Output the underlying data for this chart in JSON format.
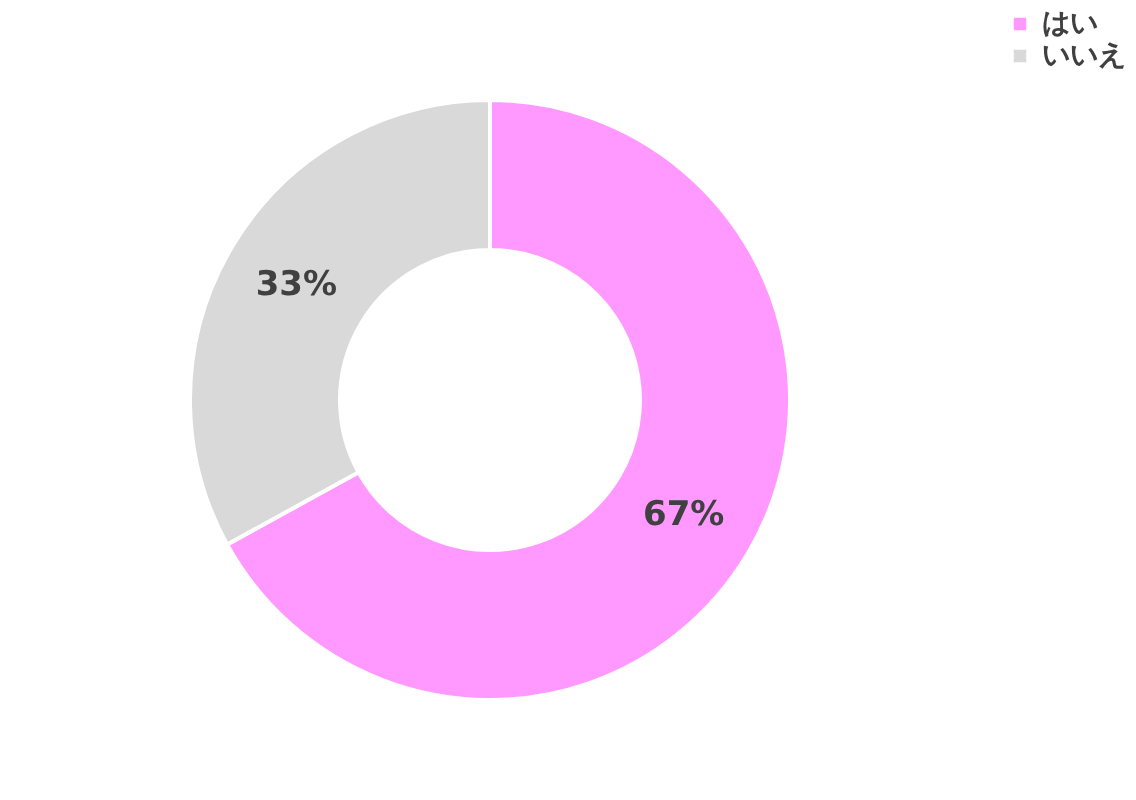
{
  "chart_data": {
    "type": "donut",
    "categories": [
      "はい",
      "いいえ"
    ],
    "values": [
      67,
      33
    ],
    "colors": [
      "#ff99ff",
      "#d9d9d9"
    ],
    "value_labels": [
      "67%",
      "33%"
    ],
    "legend": "right"
  }
}
